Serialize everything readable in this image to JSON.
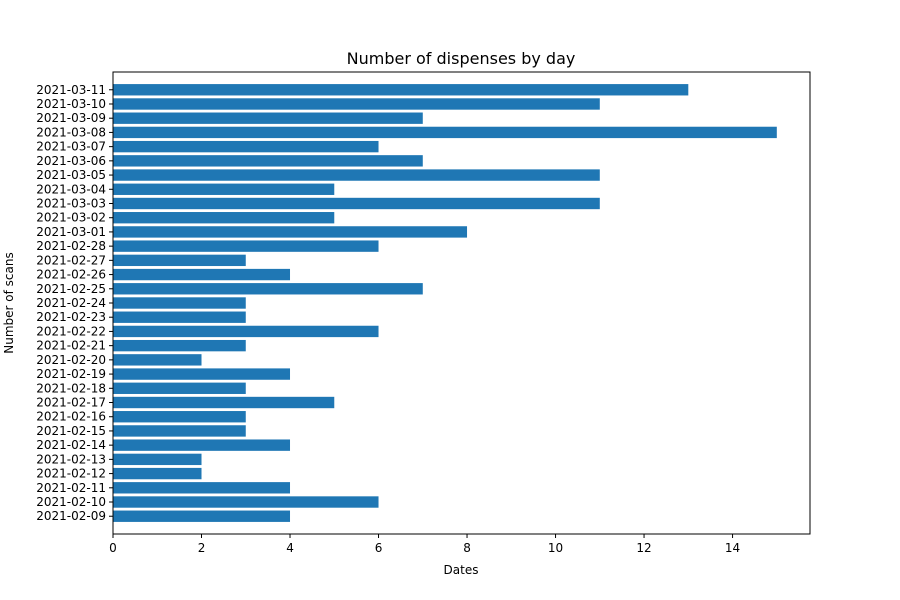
{
  "chart_data": {
    "type": "bar",
    "orientation": "horizontal",
    "title": "Number of dispenses by day",
    "xlabel": "Dates",
    "ylabel": "Number of scans",
    "categories": [
      "2021-02-09",
      "2021-02-10",
      "2021-02-11",
      "2021-02-12",
      "2021-02-13",
      "2021-02-14",
      "2021-02-15",
      "2021-02-16",
      "2021-02-17",
      "2021-02-18",
      "2021-02-19",
      "2021-02-20",
      "2021-02-21",
      "2021-02-22",
      "2021-02-23",
      "2021-02-24",
      "2021-02-25",
      "2021-02-26",
      "2021-02-27",
      "2021-02-28",
      "2021-03-01",
      "2021-03-02",
      "2021-03-03",
      "2021-03-04",
      "2021-03-05",
      "2021-03-06",
      "2021-03-07",
      "2021-03-08",
      "2021-03-09",
      "2021-03-10",
      "2021-03-11"
    ],
    "values": [
      4,
      6,
      4,
      2,
      2,
      4,
      3,
      3,
      5,
      3,
      4,
      2,
      3,
      6,
      3,
      3,
      7,
      4,
      3,
      6,
      8,
      5,
      11,
      5,
      11,
      7,
      6,
      15,
      7,
      11,
      13
    ],
    "xlim": [
      0,
      15.75
    ],
    "xticks": [
      0,
      2,
      4,
      6,
      8,
      10,
      12,
      14
    ],
    "bar_color": "#1f77b4",
    "grid": false
  }
}
